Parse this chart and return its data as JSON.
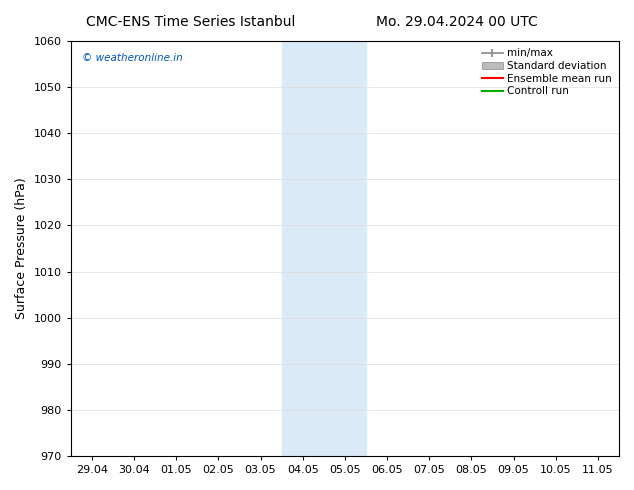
{
  "title_left": "CMC-ENS Time Series Istanbul",
  "title_right": "Mo. 29.04.2024 00 UTC",
  "ylabel": "Surface Pressure (hPa)",
  "ylim": [
    970,
    1060
  ],
  "yticks": [
    970,
    980,
    990,
    1000,
    1010,
    1020,
    1030,
    1040,
    1050,
    1060
  ],
  "xlim_start": -0.5,
  "xlim_end": 12.5,
  "xtick_positions": [
    0,
    1,
    2,
    3,
    4,
    5,
    6,
    7,
    8,
    9,
    10,
    11,
    12
  ],
  "xtick_labels": [
    "29.04",
    "30.04",
    "01.05",
    "02.05",
    "03.05",
    "04.05",
    "05.05",
    "06.05",
    "07.05",
    "08.05",
    "09.05",
    "10.05",
    "11.05"
  ],
  "shade_x_start": 4.5,
  "shade_x_end": 6.5,
  "shade_color": "#daeaf7",
  "watermark": "© weatheronline.in",
  "watermark_color": "#0055cc",
  "bg_color": "#ffffff",
  "plot_bg_color": "#ffffff",
  "legend_entries": [
    "min/max",
    "Standard deviation",
    "Ensemble mean run",
    "Controll run"
  ],
  "legend_line_colors": [
    "#888888",
    "#bbbbbb",
    "#ff0000",
    "#00aa00"
  ],
  "title_fontsize": 10,
  "axis_label_fontsize": 9,
  "tick_fontsize": 8,
  "grid_color": "#dddddd"
}
